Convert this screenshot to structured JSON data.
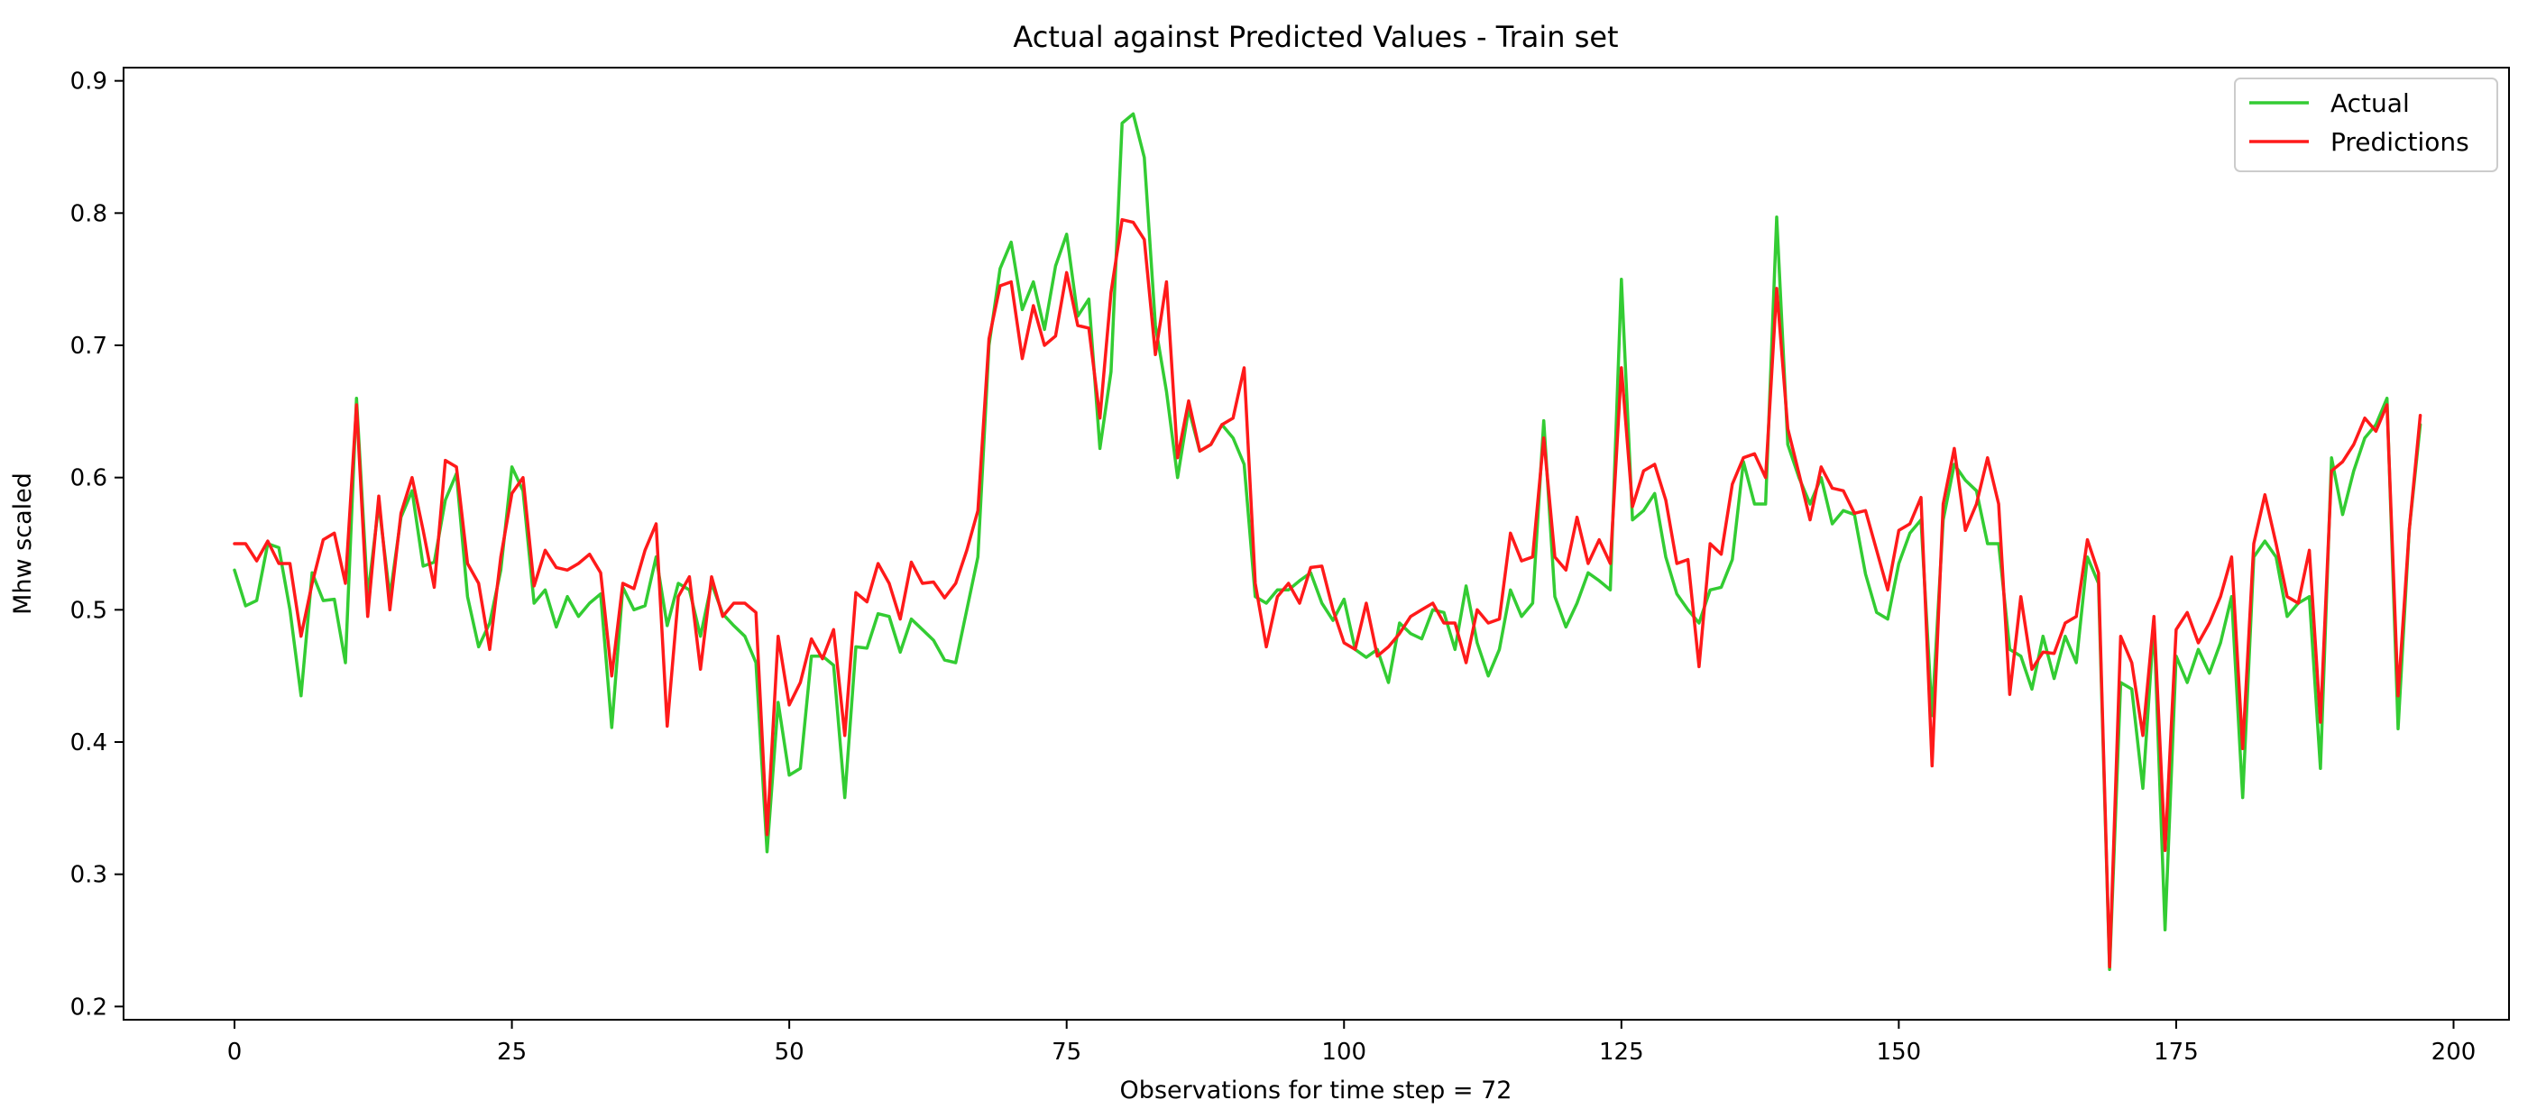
{
  "chart_data": {
    "type": "line",
    "title": "Actual against Predicted Values - Train set",
    "xlabel": "Observations for time step = 72",
    "ylabel": "Mhw scaled",
    "xlim": [
      -10,
      205
    ],
    "ylim": [
      0.19,
      0.91
    ],
    "xticks": [
      0,
      25,
      50,
      75,
      100,
      125,
      150,
      175,
      200
    ],
    "yticks": [
      0.2,
      0.3,
      0.4,
      0.5,
      0.6,
      0.7,
      0.8,
      0.9
    ],
    "grid": false,
    "legend_position": "top-right",
    "x": [
      0,
      1,
      2,
      3,
      4,
      5,
      6,
      7,
      8,
      9,
      10,
      11,
      12,
      13,
      14,
      15,
      16,
      17,
      18,
      19,
      20,
      21,
      22,
      23,
      24,
      25,
      26,
      27,
      28,
      29,
      30,
      31,
      32,
      33,
      34,
      35,
      36,
      37,
      38,
      39,
      40,
      41,
      42,
      43,
      44,
      45,
      46,
      47,
      48,
      49,
      50,
      51,
      52,
      53,
      54,
      55,
      56,
      57,
      58,
      59,
      60,
      61,
      62,
      63,
      64,
      65,
      66,
      67,
      68,
      69,
      70,
      71,
      72,
      73,
      74,
      75,
      76,
      77,
      78,
      79,
      80,
      81,
      82,
      83,
      84,
      85,
      86,
      87,
      88,
      89,
      90,
      91,
      92,
      93,
      94,
      95,
      96,
      97,
      98,
      99,
      100,
      101,
      102,
      103,
      104,
      105,
      106,
      107,
      108,
      109,
      110,
      111,
      112,
      113,
      114,
      115,
      116,
      117,
      118,
      119,
      120,
      121,
      122,
      123,
      124,
      125,
      126,
      127,
      128,
      129,
      130,
      131,
      132,
      133,
      134,
      135,
      136,
      137,
      138,
      139,
      140,
      141,
      142,
      143,
      144,
      145,
      146,
      147,
      148,
      149,
      150,
      151,
      152,
      153,
      154,
      155,
      156,
      157,
      158,
      159,
      160,
      161,
      162,
      163,
      164,
      165,
      166,
      167,
      168,
      169,
      170,
      171,
      172,
      173,
      174,
      175,
      176,
      177,
      178,
      179,
      180,
      181,
      182,
      183,
      184,
      185,
      186,
      187,
      188,
      189,
      190,
      191,
      192,
      193,
      194,
      195,
      196,
      197
    ],
    "series": [
      {
        "name": "Actual",
        "color": "#33cc33",
        "values": [
          0.53,
          0.503,
          0.507,
          0.55,
          0.547,
          0.5,
          0.435,
          0.528,
          0.507,
          0.508,
          0.46,
          0.66,
          0.51,
          0.58,
          0.51,
          0.57,
          0.59,
          0.533,
          0.536,
          0.583,
          0.603,
          0.51,
          0.472,
          0.49,
          0.53,
          0.608,
          0.59,
          0.505,
          0.515,
          0.487,
          0.51,
          0.495,
          0.505,
          0.512,
          0.411,
          0.517,
          0.5,
          0.503,
          0.54,
          0.488,
          0.52,
          0.515,
          0.48,
          0.52,
          0.497,
          0.488,
          0.48,
          0.46,
          0.317,
          0.43,
          0.375,
          0.38,
          0.465,
          0.465,
          0.458,
          0.358,
          0.472,
          0.471,
          0.497,
          0.495,
          0.468,
          0.493,
          0.485,
          0.477,
          0.462,
          0.46,
          0.5,
          0.54,
          0.7,
          0.758,
          0.778,
          0.727,
          0.748,
          0.712,
          0.76,
          0.784,
          0.722,
          0.735,
          0.622,
          0.68,
          0.868,
          0.875,
          0.842,
          0.715,
          0.665,
          0.6,
          0.652,
          0.62,
          0.625,
          0.64,
          0.63,
          0.61,
          0.51,
          0.505,
          0.515,
          0.515,
          0.522,
          0.528,
          0.505,
          0.492,
          0.508,
          0.47,
          0.464,
          0.47,
          0.445,
          0.49,
          0.482,
          0.478,
          0.5,
          0.498,
          0.47,
          0.518,
          0.475,
          0.45,
          0.47,
          0.515,
          0.495,
          0.505,
          0.643,
          0.51,
          0.487,
          0.505,
          0.528,
          0.522,
          0.515,
          0.75,
          0.568,
          0.575,
          0.588,
          0.54,
          0.512,
          0.5,
          0.49,
          0.515,
          0.517,
          0.538,
          0.612,
          0.58,
          0.58,
          0.797,
          0.625,
          0.6,
          0.58,
          0.6,
          0.565,
          0.575,
          0.572,
          0.527,
          0.498,
          0.493,
          0.535,
          0.558,
          0.568,
          0.42,
          0.568,
          0.61,
          0.598,
          0.59,
          0.55,
          0.55,
          0.47,
          0.465,
          0.44,
          0.48,
          0.448,
          0.48,
          0.46,
          0.54,
          0.52,
          0.228,
          0.445,
          0.44,
          0.365,
          0.49,
          0.258,
          0.465,
          0.445,
          0.47,
          0.452,
          0.475,
          0.51,
          0.358,
          0.54,
          0.552,
          0.54,
          0.495,
          0.505,
          0.51,
          0.38,
          0.615,
          0.572,
          0.605,
          0.63,
          0.64,
          0.66,
          0.41,
          0.56,
          0.64
        ]
      },
      {
        "name": "Predictions",
        "color": "#ff1a1a",
        "values": [
          0.55,
          0.55,
          0.537,
          0.552,
          0.535,
          0.535,
          0.48,
          0.52,
          0.553,
          0.558,
          0.52,
          0.655,
          0.495,
          0.586,
          0.5,
          0.573,
          0.6,
          0.56,
          0.517,
          0.613,
          0.608,
          0.535,
          0.52,
          0.47,
          0.54,
          0.588,
          0.6,
          0.518,
          0.545,
          0.532,
          0.53,
          0.535,
          0.542,
          0.528,
          0.45,
          0.52,
          0.516,
          0.545,
          0.565,
          0.412,
          0.51,
          0.525,
          0.455,
          0.525,
          0.495,
          0.505,
          0.505,
          0.498,
          0.33,
          0.48,
          0.428,
          0.445,
          0.478,
          0.463,
          0.485,
          0.405,
          0.513,
          0.506,
          0.535,
          0.52,
          0.493,
          0.536,
          0.52,
          0.521,
          0.509,
          0.52,
          0.545,
          0.575,
          0.705,
          0.745,
          0.748,
          0.69,
          0.73,
          0.7,
          0.707,
          0.755,
          0.715,
          0.713,
          0.645,
          0.74,
          0.795,
          0.793,
          0.78,
          0.693,
          0.748,
          0.615,
          0.658,
          0.62,
          0.625,
          0.64,
          0.645,
          0.683,
          0.52,
          0.472,
          0.51,
          0.52,
          0.505,
          0.532,
          0.533,
          0.5,
          0.475,
          0.47,
          0.505,
          0.465,
          0.472,
          0.482,
          0.495,
          0.5,
          0.505,
          0.49,
          0.49,
          0.46,
          0.5,
          0.49,
          0.493,
          0.558,
          0.537,
          0.54,
          0.63,
          0.54,
          0.53,
          0.57,
          0.535,
          0.553,
          0.535,
          0.683,
          0.578,
          0.605,
          0.61,
          0.583,
          0.535,
          0.538,
          0.457,
          0.55,
          0.542,
          0.595,
          0.615,
          0.618,
          0.6,
          0.743,
          0.637,
          0.603,
          0.568,
          0.608,
          0.592,
          0.59,
          0.573,
          0.575,
          0.545,
          0.515,
          0.56,
          0.565,
          0.585,
          0.382,
          0.58,
          0.622,
          0.56,
          0.58,
          0.615,
          0.58,
          0.436,
          0.51,
          0.455,
          0.468,
          0.467,
          0.49,
          0.495,
          0.553,
          0.528,
          0.23,
          0.48,
          0.46,
          0.405,
          0.495,
          0.318,
          0.485,
          0.498,
          0.475,
          0.49,
          0.51,
          0.54,
          0.395,
          0.55,
          0.587,
          0.55,
          0.51,
          0.505,
          0.545,
          0.415,
          0.605,
          0.612,
          0.625,
          0.645,
          0.635,
          0.655,
          0.435,
          0.56,
          0.647
        ]
      }
    ]
  }
}
